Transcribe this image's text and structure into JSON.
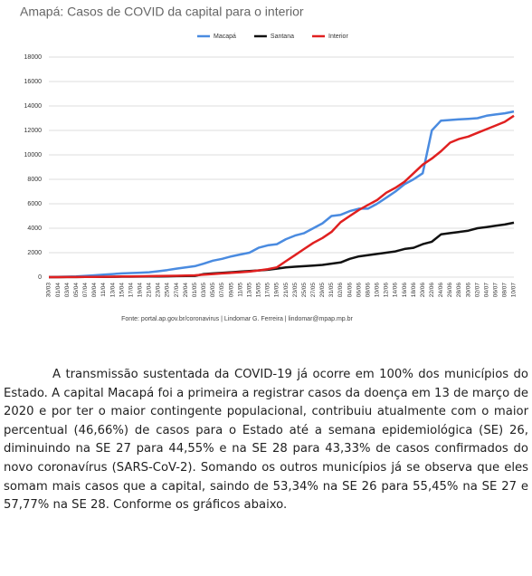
{
  "chart_data": {
    "type": "line",
    "title": "Amapá: Casos de COVID da capital para o interior",
    "source": "Fonte: portal.ap.gov.br/coronavirus | Lindomar G. Ferreira | lindomar@mpap.mp.br",
    "categories": [
      "30/03",
      "01/04",
      "03/04",
      "05/04",
      "07/04",
      "09/04",
      "11/04",
      "13/04",
      "15/04",
      "17/04",
      "19/04",
      "21/04",
      "23/04",
      "25/04",
      "27/04",
      "29/04",
      "01/05",
      "03/05",
      "05/05",
      "07/05",
      "09/05",
      "11/05",
      "13/05",
      "15/05",
      "17/05",
      "19/05",
      "21/05",
      "23/05",
      "25/05",
      "27/05",
      "29/05",
      "31/05",
      "02/06",
      "04/06",
      "06/06",
      "08/06",
      "10/06",
      "12/06",
      "14/06",
      "16/06",
      "18/06",
      "20/06",
      "22/06",
      "24/06",
      "26/06",
      "28/06",
      "30/06",
      "02/07",
      "04/07",
      "06/07",
      "08/07",
      "10/07"
    ],
    "series": [
      {
        "name": "Macapá",
        "color": "#4a8be0",
        "values": [
          0,
          20,
          40,
          60,
          100,
          150,
          200,
          250,
          300,
          330,
          360,
          400,
          480,
          580,
          700,
          800,
          900,
          1100,
          1350,
          1500,
          1700,
          1850,
          2000,
          2400,
          2600,
          2700,
          3100,
          3400,
          3600,
          4000,
          4400,
          5000,
          5100,
          5400,
          5600,
          5600,
          6000,
          6500,
          7000,
          7600,
          8000,
          8500,
          12000,
          12800,
          12850,
          12900,
          12950,
          13000,
          13200,
          13300,
          13400,
          13550
        ]
      },
      {
        "name": "Santana",
        "color": "#111111",
        "values": [
          0,
          0,
          5,
          10,
          15,
          20,
          25,
          30,
          35,
          40,
          45,
          50,
          60,
          70,
          80,
          90,
          100,
          250,
          300,
          350,
          400,
          450,
          500,
          550,
          600,
          700,
          800,
          850,
          900,
          950,
          1000,
          1100,
          1200,
          1500,
          1700,
          1800,
          1900,
          2000,
          2100,
          2300,
          2400,
          2700,
          2900,
          3500,
          3600,
          3700,
          3800,
          4000,
          4100,
          4200,
          4300,
          4450
        ]
      },
      {
        "name": "Interior",
        "color": "#e02020",
        "values": [
          0,
          0,
          5,
          10,
          15,
          20,
          30,
          40,
          50,
          60,
          70,
          80,
          90,
          100,
          110,
          130,
          150,
          200,
          250,
          300,
          350,
          400,
          450,
          550,
          650,
          800,
          1300,
          1800,
          2300,
          2800,
          3200,
          3700,
          4500,
          5000,
          5500,
          5900,
          6300,
          6900,
          7300,
          7800,
          8500,
          9200,
          9700,
          10300,
          11000,
          11300,
          11500,
          11800,
          12100,
          12400,
          12700,
          13200
        ]
      }
    ],
    "ylim": [
      0,
      18000
    ],
    "yticks": [
      0,
      2000,
      4000,
      6000,
      8000,
      10000,
      12000,
      14000,
      16000,
      18000
    ],
    "grid": true
  },
  "paragraph": "A transmissão sustentada da COVID-19 já ocorre em 100% dos municípios do Estado. A capital Macapá foi a primeira a registrar casos da doença em 13 de março de 2020 e por ter o maior contingente populacional, contribuiu atualmente com o maior percentual (46,66%) de casos para o Estado até a semana epidemiológica (SE) 26, diminuindo na SE 27 para 44,55% e na SE 28 para 43,33% de casos confirmados do novo coronavírus (SARS-CoV-2). Somando os outros municípios já se observa que eles somam mais casos que a capital, saindo de 53,34% na SE 26 para 55,45% na SE 27 e 57,77% na SE 28. Conforme os gráficos abaixo."
}
